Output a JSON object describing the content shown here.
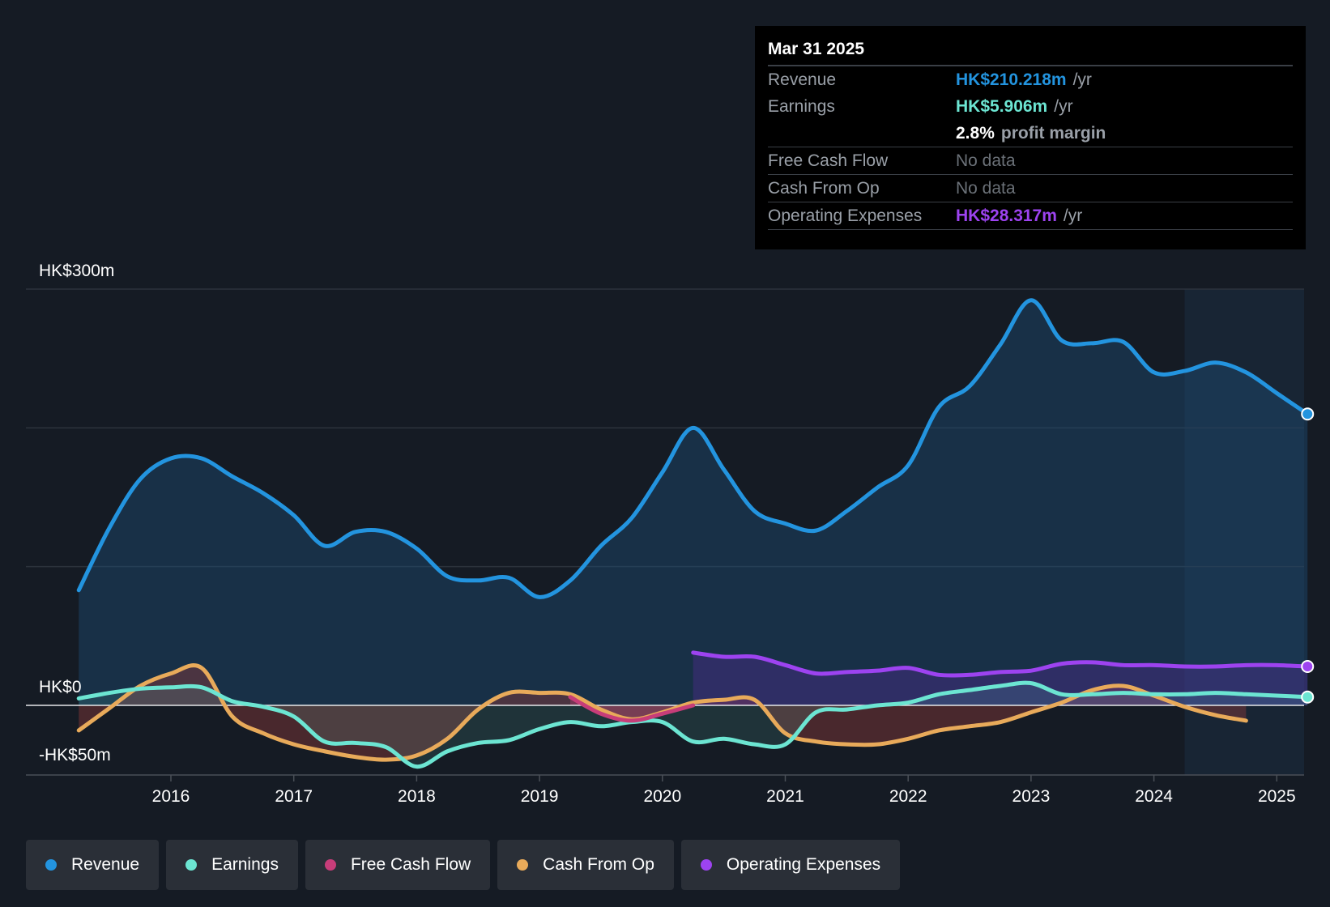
{
  "tooltip": {
    "date": "Mar 31 2025",
    "revenue_label": "Revenue",
    "revenue_value": "HK$210.218m",
    "revenue_unit": "/yr",
    "earnings_label": "Earnings",
    "earnings_value": "HK$5.906m",
    "earnings_unit": "/yr",
    "margin_value": "2.8%",
    "margin_label": "profit margin",
    "fcf_label": "Free Cash Flow",
    "fcf_value": "No data",
    "cfo_label": "Cash From Op",
    "cfo_value": "No data",
    "opex_label": "Operating Expenses",
    "opex_value": "HK$28.317m",
    "opex_unit": "/yr"
  },
  "colors": {
    "revenue": "#2394df",
    "earnings": "#6ce5d2",
    "free_cash_flow": "#c73d79",
    "cash_from_op": "#e8aa5a",
    "operating_expenses": "#9d43f0",
    "background": "#151b24"
  },
  "legend": [
    {
      "label": "Revenue",
      "color": "#2394df"
    },
    {
      "label": "Earnings",
      "color": "#6ce5d2"
    },
    {
      "label": "Free Cash Flow",
      "color": "#c73d79"
    },
    {
      "label": "Cash From Op",
      "color": "#e8aa5a"
    },
    {
      "label": "Operating Expenses",
      "color": "#9d43f0"
    }
  ],
  "chart_data": {
    "type": "line",
    "title": "",
    "xlabel": "",
    "ylabel": "",
    "ylim": [
      -50,
      300
    ],
    "y_tick_labels": [
      "HK$300m",
      "HK$0",
      "-HK$50m"
    ],
    "y_tick_values": [
      300,
      0,
      -50
    ],
    "x_tick_labels": [
      "2016",
      "2017",
      "2018",
      "2019",
      "2020",
      "2021",
      "2022",
      "2023",
      "2024",
      "2025"
    ],
    "x_tick_values": [
      2016,
      2017,
      2018,
      2019,
      2020,
      2021,
      2022,
      2023,
      2024,
      2025
    ],
    "xlim": [
      2015.25,
      2025.25
    ],
    "forecast_shade_start": 2024.25,
    "series": [
      {
        "name": "Revenue",
        "x": [
          2015.25,
          2015.5,
          2015.75,
          2016.0,
          2016.25,
          2016.5,
          2016.75,
          2017.0,
          2017.25,
          2017.5,
          2017.75,
          2018.0,
          2018.25,
          2018.5,
          2018.75,
          2019.0,
          2019.25,
          2019.5,
          2019.75,
          2020.0,
          2020.25,
          2020.5,
          2020.75,
          2021.0,
          2021.25,
          2021.5,
          2021.75,
          2022.0,
          2022.25,
          2022.5,
          2022.75,
          2023.0,
          2023.25,
          2023.5,
          2023.75,
          2024.0,
          2024.25,
          2024.5,
          2024.75,
          2025.0,
          2025.25
        ],
        "values": [
          83,
          128,
          163,
          178,
          178,
          165,
          153,
          137,
          115,
          125,
          125,
          113,
          93,
          90,
          92,
          78,
          90,
          115,
          135,
          168,
          200,
          170,
          140,
          131,
          126,
          140,
          157,
          173,
          215,
          230,
          260,
          292,
          263,
          261,
          262,
          240,
          241,
          247,
          240,
          225,
          210
        ]
      },
      {
        "name": "Earnings",
        "x": [
          2015.25,
          2015.5,
          2015.75,
          2016.0,
          2016.25,
          2016.5,
          2016.75,
          2017.0,
          2017.25,
          2017.5,
          2017.75,
          2018.0,
          2018.25,
          2018.5,
          2018.75,
          2019.0,
          2019.25,
          2019.5,
          2019.75,
          2020.0,
          2020.25,
          2020.5,
          2020.75,
          2021.0,
          2021.25,
          2021.5,
          2021.75,
          2022.0,
          2022.25,
          2022.5,
          2022.75,
          2023.0,
          2023.25,
          2023.5,
          2023.75,
          2024.0,
          2024.25,
          2024.5,
          2024.75,
          2025.0,
          2025.25
        ],
        "values": [
          5,
          9,
          12,
          13,
          13,
          3,
          -1,
          -8,
          -26,
          -27,
          -30,
          -44,
          -33,
          -27,
          -25,
          -17,
          -12,
          -15,
          -12,
          -12,
          -26,
          -24,
          -28,
          -28,
          -5,
          -3,
          0,
          2,
          8,
          11,
          14,
          16,
          8,
          8,
          9,
          8,
          8,
          9,
          8,
          7,
          6
        ]
      },
      {
        "name": "Free Cash Flow",
        "x": [
          2019.25,
          2019.5,
          2019.75,
          2020.0,
          2020.25
        ],
        "values": [
          6,
          -6,
          -11,
          -6,
          0
        ]
      },
      {
        "name": "Cash From Op",
        "x": [
          2015.25,
          2015.5,
          2015.75,
          2016.0,
          2016.25,
          2016.5,
          2016.75,
          2017.0,
          2017.25,
          2017.5,
          2017.75,
          2018.0,
          2018.25,
          2018.5,
          2018.75,
          2019.0,
          2019.25,
          2019.5,
          2019.75,
          2020.0,
          2020.25,
          2020.5,
          2020.75,
          2021.0,
          2021.25,
          2021.5,
          2021.75,
          2022.0,
          2022.25,
          2022.5,
          2022.75,
          2023.0,
          2023.25,
          2023.5,
          2023.75,
          2024.0,
          2024.25,
          2024.5,
          2024.75
        ],
        "values": [
          -18,
          -2,
          14,
          23,
          27,
          -8,
          -20,
          -28,
          -33,
          -37,
          -39,
          -36,
          -24,
          -3,
          9,
          9,
          8,
          -3,
          -10,
          -5,
          2,
          4,
          4,
          -20,
          -26,
          -28,
          -28,
          -24,
          -18,
          -15,
          -12,
          -5,
          2,
          11,
          14,
          7,
          -1,
          -7,
          -11
        ]
      },
      {
        "name": "Operating Expenses",
        "x": [
          2020.25,
          2020.5,
          2020.75,
          2021.0,
          2021.25,
          2021.5,
          2021.75,
          2022.0,
          2022.25,
          2022.5,
          2022.75,
          2023.0,
          2023.25,
          2023.5,
          2023.75,
          2024.0,
          2024.25,
          2024.5,
          2024.75,
          2025.0,
          2025.25
        ],
        "values": [
          38,
          35,
          35,
          29,
          23,
          24,
          25,
          27,
          22,
          22,
          24,
          25,
          30,
          31,
          29,
          29,
          28,
          28,
          29,
          29,
          28
        ]
      }
    ]
  }
}
